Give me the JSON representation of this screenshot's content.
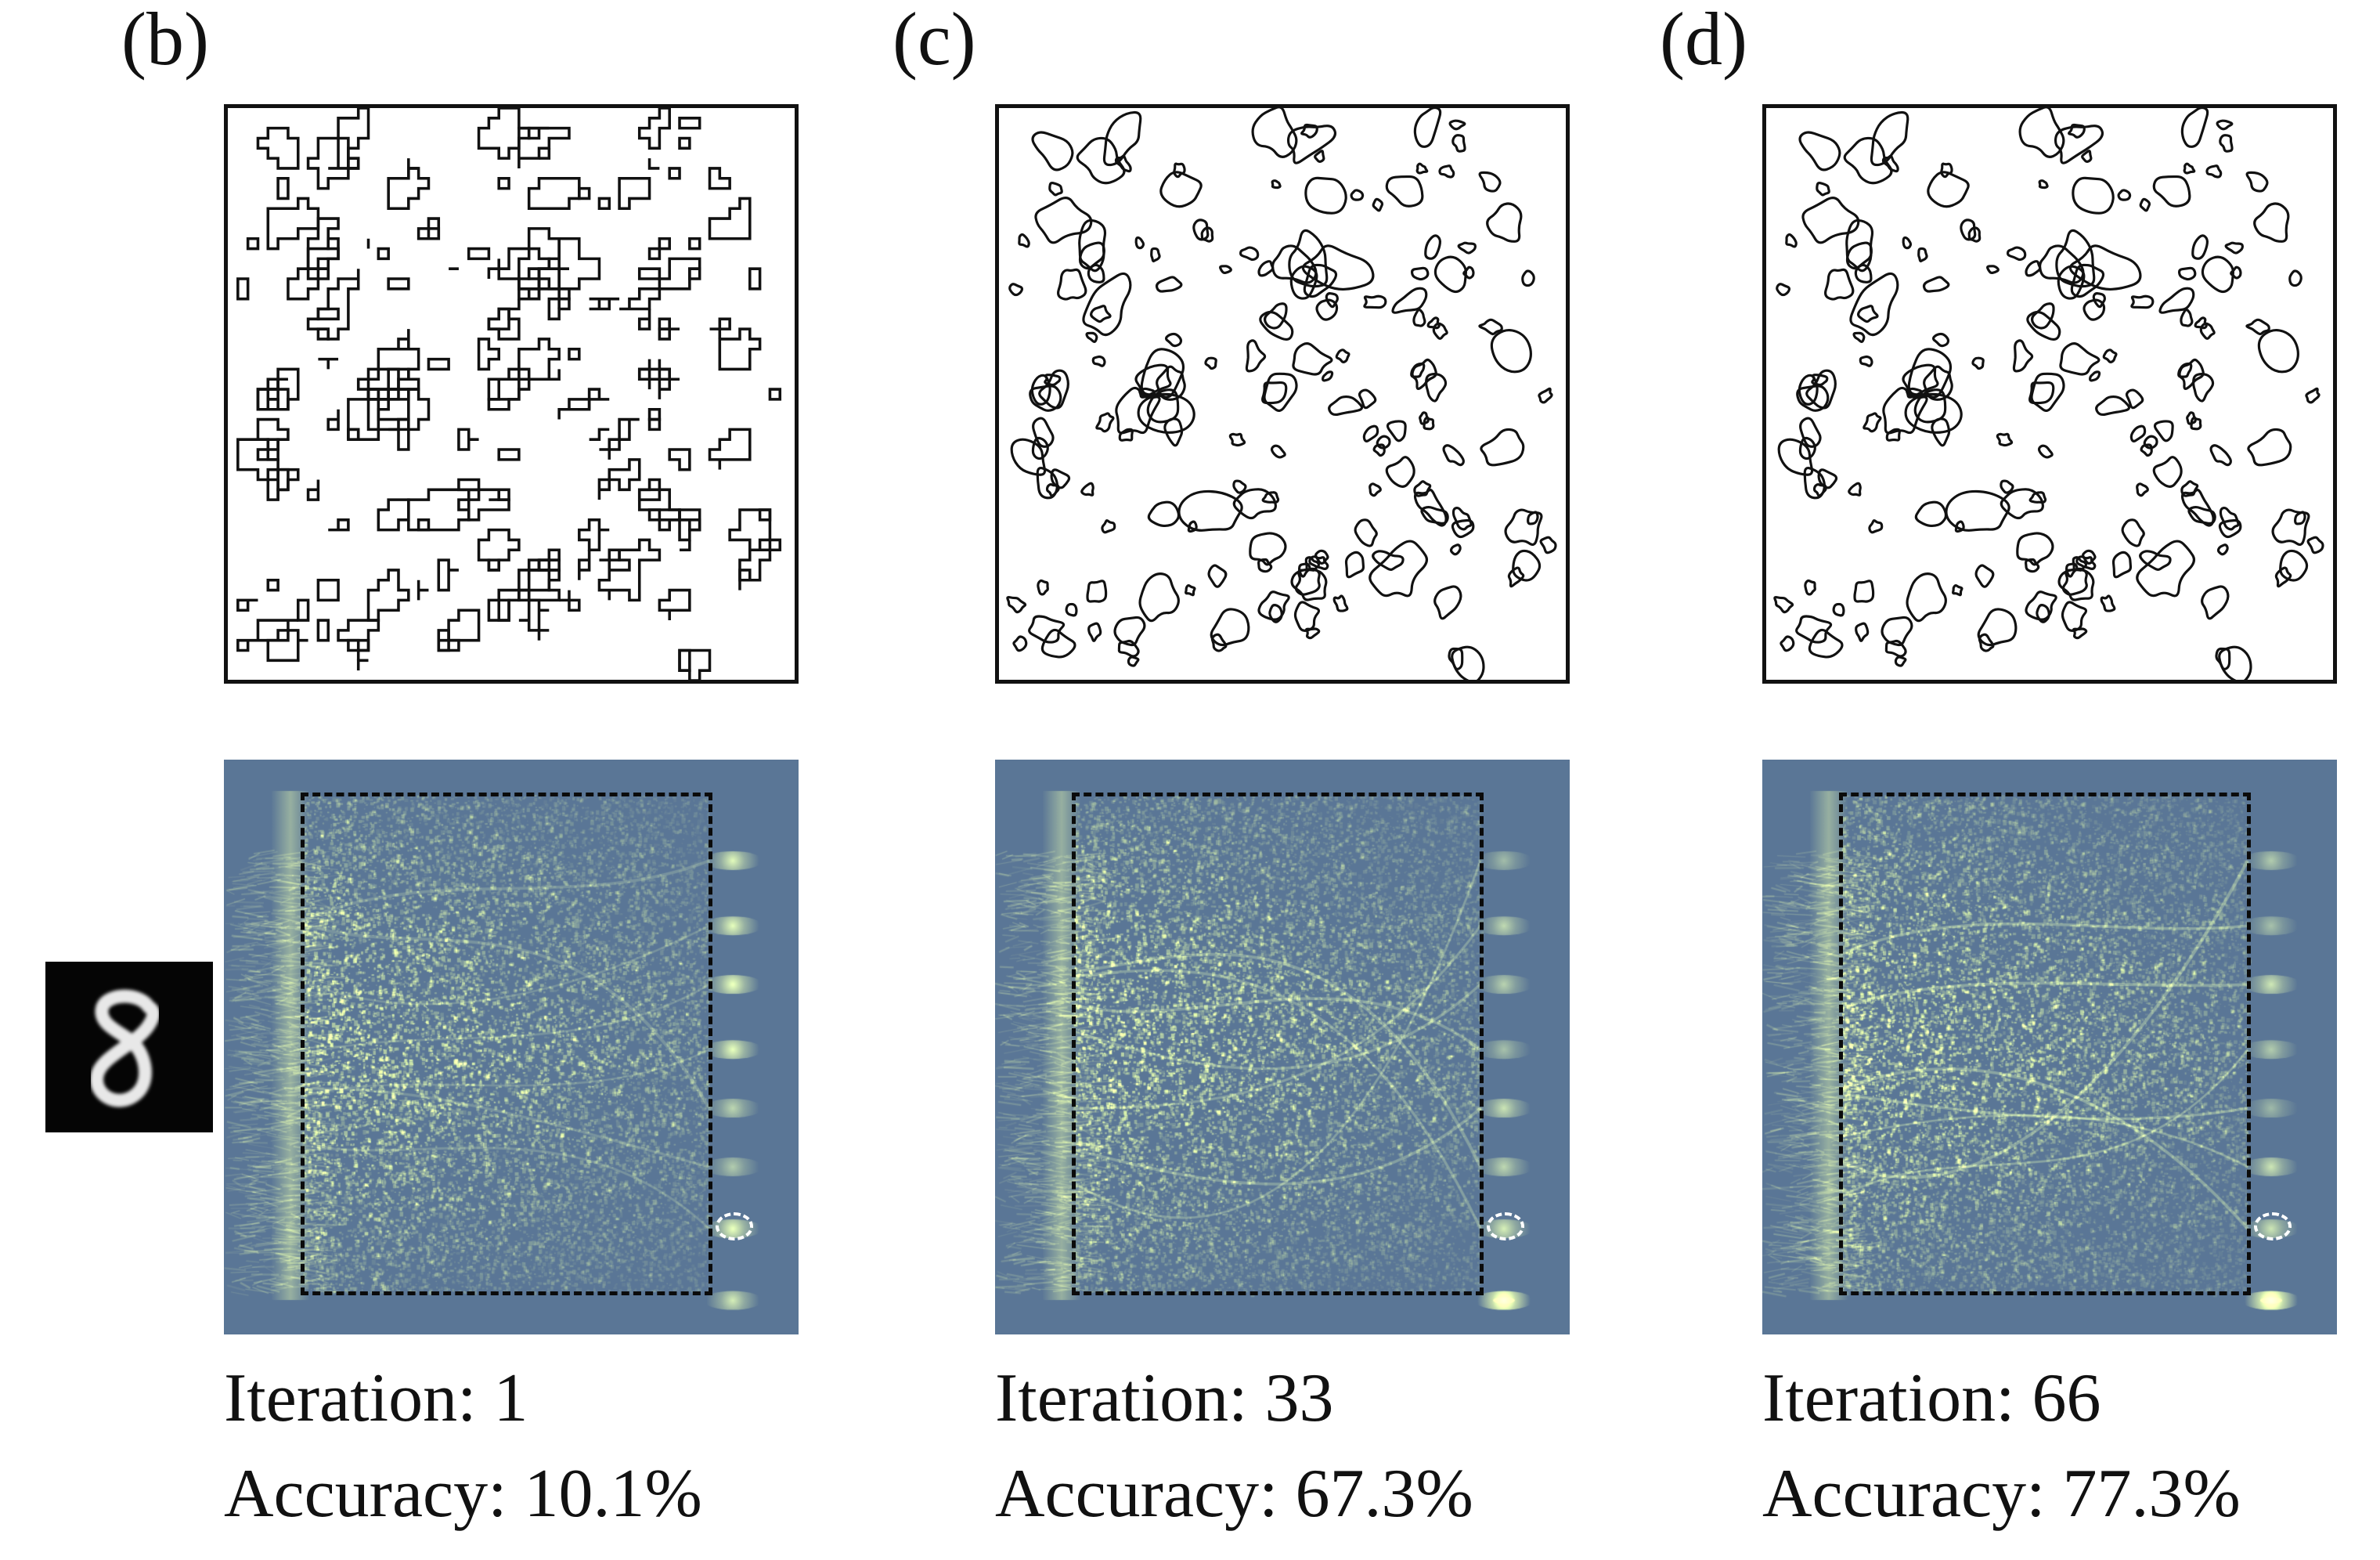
{
  "input_image": {
    "description_label": "digit-8",
    "background": "#050505"
  },
  "panels": [
    {
      "id": "b",
      "letter": "(b)",
      "iteration_text": "Iteration: 1",
      "accuracy_text": "Accuracy: 10.1%",
      "iteration": 1,
      "accuracy_percent": 10.1,
      "pattern_style": "square",
      "highlight_strength": 0.25
    },
    {
      "id": "c",
      "letter": "(c)",
      "iteration_text": "Iteration: 33",
      "accuracy_text": "Accuracy: 67.3%",
      "iteration": 33,
      "accuracy_percent": 67.3,
      "pattern_style": "smooth",
      "highlight_strength": 0.75
    },
    {
      "id": "d",
      "letter": "(d)",
      "iteration_text": "Iteration: 66",
      "accuracy_text": "Accuracy: 77.3%",
      "iteration": 66,
      "accuracy_percent": 77.3,
      "pattern_style": "smooth",
      "highlight_strength": 1.0
    }
  ],
  "colors": {
    "field_background": "#5a7696",
    "field_intensity": "#f2ee2a",
    "dashed_region": "#0b0b0b",
    "target_marker": "#ffffff",
    "structure_outline": "#111111"
  }
}
